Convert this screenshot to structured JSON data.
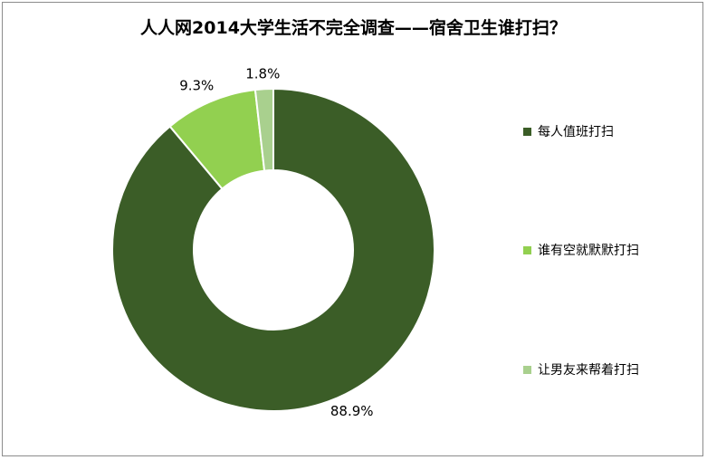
{
  "chart_data": {
    "type": "pie",
    "title": "人人网2014大学生活不完全调查——宿舍卫生谁打扫？",
    "categories": [
      "每人值班打扫",
      "谁有空就默默打扫",
      "让男友来帮着打扫"
    ],
    "values": [
      88.9,
      9.3,
      1.8
    ],
    "data_labels": [
      "88.9%",
      "9.3%",
      "1.8%"
    ],
    "colors": [
      "#3b5d27",
      "#92d050",
      "#a9d08e"
    ],
    "donut": true,
    "legend_position": "right"
  }
}
